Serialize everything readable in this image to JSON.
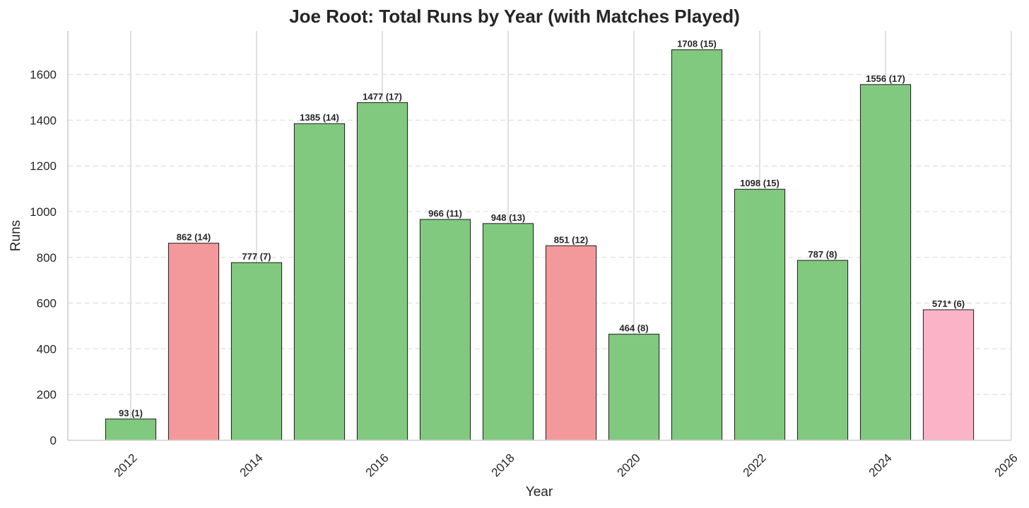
{
  "chart_data": {
    "type": "bar",
    "title": "Joe Root: Total Runs by Year (with Matches Played)",
    "xlabel": "Year",
    "ylabel": "Runs",
    "x": [
      2012,
      2013,
      2014,
      2015,
      2016,
      2017,
      2018,
      2019,
      2020,
      2021,
      2022,
      2023,
      2024,
      2025
    ],
    "values": [
      93,
      862,
      777,
      1385,
      1477,
      966,
      948,
      851,
      464,
      1708,
      1098,
      787,
      1556,
      571
    ],
    "data_labels": [
      "93 (1)",
      "862 (14)",
      "777 (7)",
      "1385 (14)",
      "1477 (17)",
      "966 (11)",
      "948 (13)",
      "851 (12)",
      "464 (8)",
      "1708 (15)",
      "1098 (15)",
      "787 (8)",
      "1556 (17)",
      "571* (6)"
    ],
    "bar_colors": [
      "#81c97f",
      "#f4999b",
      "#81c97f",
      "#81c97f",
      "#81c97f",
      "#81c97f",
      "#81c97f",
      "#f4999b",
      "#81c97f",
      "#81c97f",
      "#81c97f",
      "#81c97f",
      "#81c97f",
      "#fbb3c7"
    ],
    "xticks": [
      2012,
      2014,
      2016,
      2018,
      2020,
      2022,
      2024,
      2026
    ],
    "yticks": [
      0,
      200,
      400,
      600,
      800,
      1000,
      1200,
      1400,
      1600
    ],
    "xlim": [
      2011.0,
      2026.0
    ],
    "ylim": [
      0,
      1790
    ],
    "grid": "y-dashed, x-solid",
    "legend": "none"
  }
}
